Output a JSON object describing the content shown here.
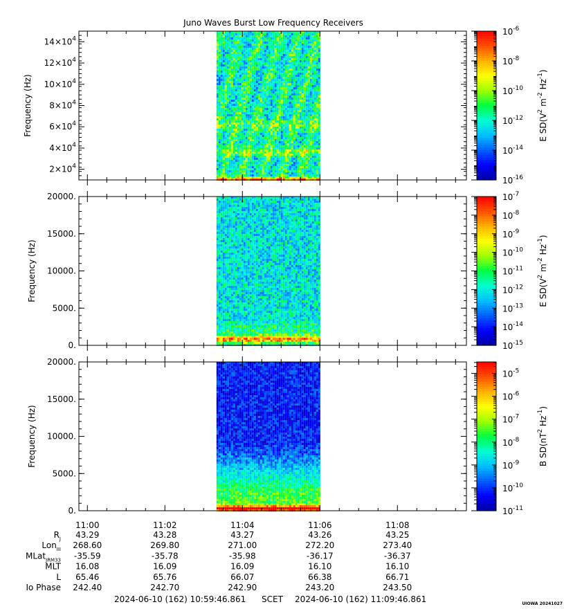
{
  "title": "Juno Waves Burst Low Frequency Receivers",
  "footer": {
    "start": "2024-06-10 (162) 10:59:46.861",
    "mid": "SCET",
    "end": "2024-06-10 (162) 11:09:46.861",
    "stamp": "UIOWA 20241027"
  },
  "colors": {
    "colormap": [
      "#0000a0",
      "#0000ff",
      "#0060ff",
      "#00c0ff",
      "#00ffd0",
      "#00ff40",
      "#a0ff00",
      "#ffff00",
      "#ffb000",
      "#ff5000",
      "#ff0000"
    ]
  },
  "time_ticks": [
    "11:00",
    "11:02",
    "11:04",
    "11:06",
    "11:08"
  ],
  "ephemeris": {
    "rows": [
      {
        "label": "R",
        "sub": "J",
        "values": [
          "43.29",
          "43.28",
          "43.27",
          "43.26",
          "43.25"
        ]
      },
      {
        "label": "Lon",
        "sub": "III",
        "values": [
          "268.60",
          "269.80",
          "271.00",
          "272.20",
          "273.40"
        ]
      },
      {
        "label": "MLat",
        "sub": "JRM33",
        "values": [
          "-35.59",
          "-35.78",
          "-35.98",
          "-36.17",
          "-36.37"
        ]
      },
      {
        "label": "MLT",
        "sub": "",
        "values": [
          "16.08",
          "16.09",
          "16.09",
          "16.10",
          "16.10"
        ]
      },
      {
        "label": "L",
        "sub": "",
        "values": [
          "65.46",
          "65.76",
          "66.07",
          "66.38",
          "66.71"
        ]
      },
      {
        "label": "Io Phase",
        "sub": "",
        "values": [
          "242.40",
          "242.70",
          "242.90",
          "243.20",
          "243.50"
        ]
      }
    ]
  },
  "chart_data": [
    {
      "type": "heatmap",
      "ylabel": "Frequency (Hz)",
      "xlim": [
        0,
        600
      ],
      "ylim": [
        10000,
        150000
      ],
      "yticks": [
        {
          "value": 20000,
          "mant": "2",
          "exp": "4"
        },
        {
          "value": 40000,
          "mant": "4",
          "exp": "4"
        },
        {
          "value": 60000,
          "mant": "6",
          "exp": "4"
        },
        {
          "value": 80000,
          "mant": "8",
          "exp": "4"
        },
        {
          "value": 100000,
          "mant": "10",
          "exp": "4"
        },
        {
          "value": 120000,
          "mant": "12",
          "exp": "4"
        },
        {
          "value": 140000,
          "mant": "14",
          "exp": "4"
        }
      ],
      "data_window": [
        213,
        373
      ],
      "colorbar": {
        "label_pre": "E SD(V",
        "label_mid": " m",
        "label_post": " Hz",
        "exps": [
          "2",
          "-2",
          "-1"
        ],
        "range_exp": [
          -16,
          -6
        ],
        "tick_exps": [
          "-6",
          "-8",
          "-10",
          "-12",
          "-14",
          "-16"
        ]
      },
      "profile": {
        "base": 0.42,
        "noise": 0.16,
        "bands": [
          {
            "f": 11000,
            "w": 1500,
            "amp": 0.5
          },
          {
            "f": 36000,
            "w": 3500,
            "amp": 0.18
          },
          {
            "f": 62000,
            "w": 4500,
            "amp": 0.12
          }
        ],
        "stripes": true
      }
    },
    {
      "type": "heatmap",
      "ylabel": "Frequency (Hz)",
      "xlim": [
        0,
        600
      ],
      "ylim": [
        0,
        20000
      ],
      "yticks": [
        {
          "value": 0,
          "text": "0."
        },
        {
          "value": 5000,
          "text": "5000."
        },
        {
          "value": 10000,
          "text": "10000."
        },
        {
          "value": 15000,
          "text": "15000."
        },
        {
          "value": 20000,
          "text": "20000."
        }
      ],
      "data_window": [
        213,
        373
      ],
      "colorbar": {
        "label_pre": "E SD(V",
        "label_mid": " m",
        "label_post": " Hz",
        "exps": [
          "2",
          "-2",
          "-1"
        ],
        "range_exp": [
          -15,
          -7
        ],
        "tick_exps": [
          "-7",
          "-8",
          "-9",
          "-10",
          "-11",
          "-12",
          "-13",
          "-14",
          "-15"
        ]
      },
      "profile": {
        "base": 0.36,
        "noise": 0.14,
        "bands": [
          {
            "f": 800,
            "w": 500,
            "amp": 0.45
          },
          {
            "f": 2000,
            "w": 1200,
            "amp": 0.1
          }
        ],
        "stripes": false
      }
    },
    {
      "type": "heatmap",
      "ylabel": "Frequency (Hz)",
      "xlim": [
        0,
        600
      ],
      "ylim": [
        0,
        20000
      ],
      "yticks": [
        {
          "value": 0,
          "text": "0."
        },
        {
          "value": 5000,
          "text": "5000."
        },
        {
          "value": 10000,
          "text": "10000."
        },
        {
          "value": 15000,
          "text": "15000."
        },
        {
          "value": 20000,
          "text": "20000."
        }
      ],
      "data_window": [
        213,
        373
      ],
      "colorbar": {
        "label_pre": "B SD(nT",
        "label_mid": " Hz",
        "label_post": "",
        "exps": [
          "2",
          "-1"
        ],
        "range_exp": [
          -11,
          -4.5
        ],
        "tick_exps": [
          "-5",
          "-6",
          "-7",
          "-8",
          "-9",
          "-10",
          "-11"
        ]
      },
      "profile": {
        "base": 0.12,
        "noise": 0.1,
        "bands": [
          {
            "f": 300,
            "w": 400,
            "amp": 0.55
          },
          {
            "f": 2000,
            "w": 4500,
            "amp": 0.2
          }
        ],
        "stripes": false,
        "gradient": true
      }
    }
  ]
}
